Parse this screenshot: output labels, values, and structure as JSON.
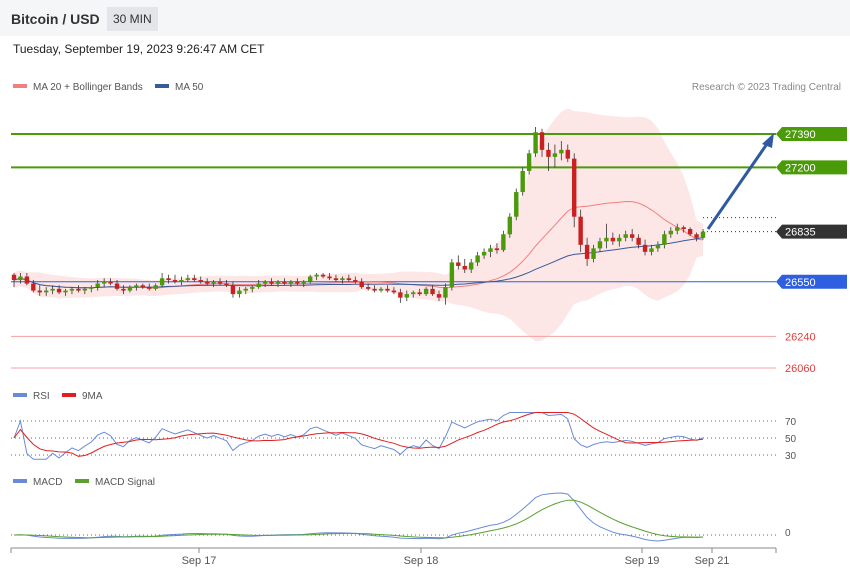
{
  "header": {
    "pair": "Bitcoin / USD",
    "timeframe": "30 MIN",
    "datetime": "Tuesday, September 19, 2023 9:26:47 AM CET"
  },
  "legend": {
    "ma20": "MA 20 + Bollinger Bands",
    "ma50": "MA 50",
    "copyright": "Research © 2023 Trading Central"
  },
  "colors": {
    "ma20": "#f08080",
    "ma50": "#3a5a9a",
    "band_fill": "#fde2e2",
    "resistance": "#4a9a0a",
    "support_blue": "#2d5fe0",
    "support_red": "#e04040",
    "current": "#333333",
    "candle_up": "#4a9a0a",
    "candle_down": "#cc2020",
    "arrow": "#2f5aa0",
    "rsi": "#6a8ad8",
    "rsi_ma": "#e02020",
    "macd": "#6a8ad8",
    "macd_signal": "#5aa030"
  },
  "chart_data": {
    "type": "candlestick",
    "title": "Bitcoin / USD",
    "price_levels": [
      {
        "value": 27390,
        "label": "27390",
        "kind": "resistance"
      },
      {
        "value": 27200,
        "label": "27200",
        "kind": "resistance"
      },
      {
        "value": 26835,
        "label": "26835",
        "kind": "current"
      },
      {
        "value": 26550,
        "label": "26550",
        "kind": "support"
      },
      {
        "value": 26240,
        "label": "26240",
        "kind": "support_minor"
      },
      {
        "value": 26060,
        "label": "26060",
        "kind": "support_minor"
      }
    ],
    "x_tick_labels": [
      "Sep 17",
      "Sep 18",
      "Sep 19",
      "Sep 21"
    ],
    "candles": [
      [
        26590,
        26600,
        26520,
        26560
      ],
      [
        26560,
        26600,
        26540,
        26580
      ],
      [
        26580,
        26600,
        26530,
        26540
      ],
      [
        26540,
        26560,
        26490,
        26500
      ],
      [
        26500,
        26530,
        26470,
        26490
      ],
      [
        26490,
        26520,
        26470,
        26500
      ],
      [
        26500,
        26530,
        26480,
        26510
      ],
      [
        26510,
        26530,
        26480,
        26490
      ],
      [
        26490,
        26510,
        26470,
        26500
      ],
      [
        26500,
        26520,
        26480,
        26510
      ],
      [
        26510,
        26530,
        26490,
        26500
      ],
      [
        26500,
        26520,
        26480,
        26510
      ],
      [
        26510,
        26530,
        26490,
        26520
      ],
      [
        26520,
        26560,
        26500,
        26540
      ],
      [
        26540,
        26570,
        26520,
        26550
      ],
      [
        26550,
        26570,
        26530,
        26540
      ],
      [
        26540,
        26560,
        26500,
        26510
      ],
      [
        26510,
        26530,
        26480,
        26500
      ],
      [
        26500,
        26530,
        26490,
        26520
      ],
      [
        26520,
        26540,
        26500,
        26530
      ],
      [
        26530,
        26540,
        26510,
        26520
      ],
      [
        26520,
        26540,
        26500,
        26510
      ],
      [
        26510,
        26540,
        26500,
        26530
      ],
      [
        26530,
        26600,
        26520,
        26570
      ],
      [
        26570,
        26590,
        26540,
        26560
      ],
      [
        26560,
        26590,
        26540,
        26550
      ],
      [
        26550,
        26580,
        26530,
        26560
      ],
      [
        26560,
        26590,
        26550,
        26570
      ],
      [
        26570,
        26590,
        26550,
        26560
      ],
      [
        26560,
        26580,
        26540,
        26550
      ],
      [
        26550,
        26570,
        26530,
        26540
      ],
      [
        26540,
        26560,
        26520,
        26550
      ],
      [
        26550,
        26570,
        26530,
        26540
      ],
      [
        26540,
        26560,
        26520,
        26530
      ],
      [
        26530,
        26550,
        26460,
        26480
      ],
      [
        26480,
        26520,
        26460,
        26500
      ],
      [
        26500,
        26520,
        26480,
        26510
      ],
      [
        26510,
        26530,
        26490,
        26520
      ],
      [
        26520,
        26560,
        26510,
        26540
      ],
      [
        26540,
        26560,
        26520,
        26550
      ],
      [
        26550,
        26570,
        26530,
        26540
      ],
      [
        26540,
        26560,
        26520,
        26550
      ],
      [
        26550,
        26570,
        26530,
        26540
      ],
      [
        26540,
        26560,
        26520,
        26550
      ],
      [
        26550,
        26570,
        26530,
        26540
      ],
      [
        26540,
        26560,
        26520,
        26550
      ],
      [
        26550,
        26590,
        26540,
        26580
      ],
      [
        26580,
        26600,
        26560,
        26590
      ],
      [
        26590,
        26600,
        26570,
        26580
      ],
      [
        26580,
        26600,
        26560,
        26570
      ],
      [
        26570,
        26590,
        26550,
        26560
      ],
      [
        26560,
        26580,
        26540,
        26570
      ],
      [
        26570,
        26590,
        26550,
        26560
      ],
      [
        26560,
        26580,
        26540,
        26550
      ],
      [
        26550,
        26570,
        26510,
        26520
      ],
      [
        26520,
        26540,
        26500,
        26510
      ],
      [
        26510,
        26530,
        26490,
        26500
      ],
      [
        26500,
        26520,
        26490,
        26510
      ],
      [
        26510,
        26530,
        26490,
        26500
      ],
      [
        26500,
        26520,
        26480,
        26490
      ],
      [
        26490,
        26510,
        26430,
        26460
      ],
      [
        26460,
        26500,
        26440,
        26480
      ],
      [
        26480,
        26500,
        26460,
        26490
      ],
      [
        26490,
        26510,
        26470,
        26480
      ],
      [
        26480,
        26520,
        26470,
        26510
      ],
      [
        26510,
        26530,
        26470,
        26480
      ],
      [
        26480,
        26500,
        26440,
        26460
      ],
      [
        26460,
        26540,
        26420,
        26520
      ],
      [
        26520,
        26680,
        26500,
        26660
      ],
      [
        26660,
        26700,
        26620,
        26640
      ],
      [
        26640,
        26680,
        26600,
        26620
      ],
      [
        26620,
        26680,
        26600,
        26660
      ],
      [
        26660,
        26720,
        26640,
        26700
      ],
      [
        26700,
        26740,
        26680,
        26720
      ],
      [
        26720,
        26760,
        26690,
        26740
      ],
      [
        26740,
        26770,
        26710,
        26730
      ],
      [
        26730,
        26840,
        26720,
        26820
      ],
      [
        26820,
        26940,
        26800,
        26920
      ],
      [
        26920,
        27080,
        26900,
        27060
      ],
      [
        27060,
        27200,
        27040,
        27180
      ],
      [
        27180,
        27300,
        27160,
        27280
      ],
      [
        27280,
        27430,
        27260,
        27400
      ],
      [
        27400,
        27420,
        27260,
        27300
      ],
      [
        27300,
        27340,
        27180,
        27260
      ],
      [
        27260,
        27330,
        27200,
        27280
      ],
      [
        27280,
        27350,
        27240,
        27300
      ],
      [
        27300,
        27330,
        27230,
        27250
      ],
      [
        27250,
        27280,
        26860,
        26920
      ],
      [
        26920,
        26960,
        26720,
        26760
      ],
      [
        26760,
        26800,
        26640,
        26680
      ],
      [
        26680,
        26760,
        26660,
        26740
      ],
      [
        26740,
        26800,
        26720,
        26780
      ],
      [
        26780,
        26880,
        26740,
        26800
      ],
      [
        26800,
        26830,
        26760,
        26780
      ],
      [
        26780,
        26820,
        26750,
        26800
      ],
      [
        26800,
        26840,
        26780,
        26820
      ],
      [
        26820,
        26850,
        26780,
        26800
      ],
      [
        26800,
        26820,
        26740,
        26760
      ],
      [
        26760,
        26790,
        26700,
        26720
      ],
      [
        26720,
        26760,
        26700,
        26740
      ],
      [
        26740,
        26780,
        26720,
        26760
      ],
      [
        26760,
        26840,
        26740,
        26820
      ],
      [
        26820,
        26860,
        26800,
        26840
      ],
      [
        26840,
        26880,
        26820,
        26860
      ],
      [
        26860,
        26870,
        26830,
        26850
      ],
      [
        26850,
        26860,
        26810,
        26820
      ],
      [
        26820,
        26830,
        26780,
        26800
      ],
      [
        26800,
        26850,
        26790,
        26835
      ]
    ],
    "indicators": {
      "rsi_levels": [
        70,
        50,
        30
      ],
      "rsi_labels": [
        "70",
        "50",
        "30"
      ],
      "macd_zero_label": "0"
    },
    "rsi_legend": [
      "RSI",
      "9MA"
    ],
    "macd_legend": [
      "MACD",
      "MACD Signal"
    ]
  }
}
